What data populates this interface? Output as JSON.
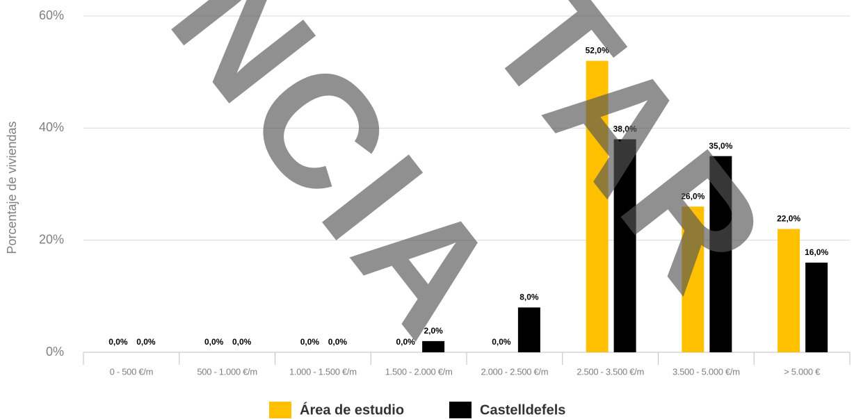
{
  "chart_data": {
    "type": "bar",
    "y_label": "Porcentaje de viviendas",
    "categories": [
      "0 - 500 €/m",
      "500 - 1.000 €/m",
      "1.000 - 1.500 €/m",
      "1.500 - 2.000 €/m",
      "2.000 - 2.500 €/m",
      "2.500 - 3.500 €/m",
      "3.500 - 5.000 €/m",
      "> 5.000 €"
    ],
    "series": [
      {
        "name": "Área de estudio",
        "color": "#FFC000",
        "values": [
          0,
          0,
          0,
          0,
          0,
          52,
          26,
          22
        ],
        "value_labels": [
          "0,0%",
          "0,0%",
          "0,0%",
          "0,0%",
          "0,0%",
          "52,0%",
          "26,0%",
          "22,0%"
        ]
      },
      {
        "name": "Castelldefels",
        "color": "#000000",
        "values": [
          0,
          0,
          0,
          2,
          8,
          38,
          35,
          16
        ],
        "value_labels": [
          "0,0%",
          "0,0%",
          "0,0%",
          "2,0%",
          "8,0%",
          "38,0%",
          "35,0%",
          "16,0%"
        ]
      }
    ],
    "ylim": [
      0,
      60
    ],
    "yticks": [
      {
        "value": 0,
        "label": "0%"
      },
      {
        "value": 20,
        "label": "20%"
      },
      {
        "value": 40,
        "label": "40%"
      },
      {
        "value": 60,
        "label": "60%"
      }
    ],
    "grid": true,
    "legend": "bottom",
    "watermark": [
      "NCIA",
      "TAR"
    ]
  }
}
